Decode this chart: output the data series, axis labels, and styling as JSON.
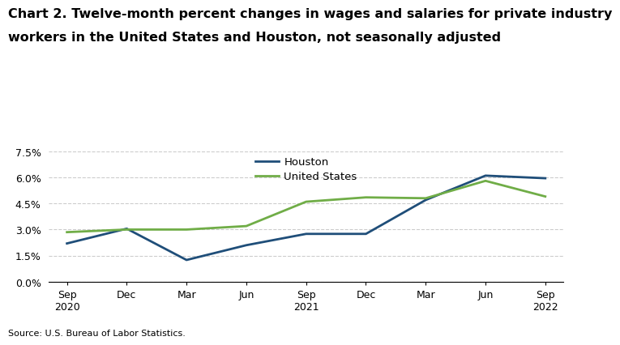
{
  "title_line1": "Chart 2. Twelve-month percent changes in wages and salaries for private industry",
  "title_line2": "workers in the United States and Houston, not seasonally adjusted",
  "source": "Source: U.S. Bureau of Labor Statistics.",
  "x_labels": [
    "Sep\n2020",
    "Dec",
    "Mar",
    "Jun",
    "Sep\n2021",
    "Dec",
    "Mar",
    "Jun",
    "Sep\n2022"
  ],
  "houston": [
    2.2,
    3.05,
    1.25,
    2.1,
    2.75,
    2.75,
    4.7,
    6.1,
    5.95
  ],
  "us": [
    2.85,
    3.0,
    3.0,
    3.2,
    4.6,
    4.85,
    4.8,
    5.8,
    4.9
  ],
  "houston_color": "#1f4e79",
  "us_color": "#70ad47",
  "line_width": 2.0,
  "ylim": [
    0.0,
    7.5
  ],
  "yticks": [
    0.0,
    1.5,
    3.0,
    4.5,
    6.0,
    7.5
  ],
  "ytick_labels": [
    "0.0%",
    "1.5%",
    "3.0%",
    "4.5%",
    "6.0%",
    "7.5%"
  ],
  "legend_houston": "Houston",
  "legend_us": "United States",
  "background_color": "#ffffff",
  "grid_color": "#cccccc",
  "title_fontsize": 11.5,
  "axis_fontsize": 9,
  "legend_fontsize": 9.5
}
